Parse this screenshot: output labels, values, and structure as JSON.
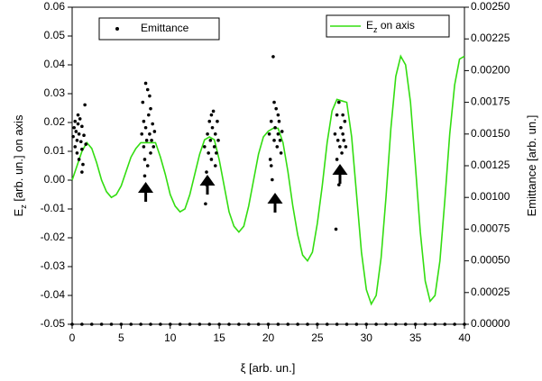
{
  "chart_data": {
    "type": "line+scatter",
    "xlabel": "ξ [arb. un.]",
    "ylabel": "E_z [arb. un.] on axis",
    "y2label": "Emittance [arb. un.]",
    "xlim": [
      0,
      40
    ],
    "xticks": [
      0,
      5,
      10,
      15,
      20,
      25,
      30,
      35,
      40
    ],
    "ylim": [
      -0.05,
      0.06
    ],
    "yticks": [
      -0.05,
      -0.04,
      -0.03,
      -0.02,
      -0.01,
      {
        "value": 0,
        "label": "0.00"
      },
      0.01,
      0.02,
      0.03,
      0.04,
      0.05,
      0.06
    ],
    "y2lim": [
      0,
      0.0025
    ],
    "y2ticks": [
      {
        "value": 0,
        "label": "0.00000"
      },
      {
        "value": 0.00025,
        "label": "0.00025"
      },
      {
        "value": 0.0005,
        "label": "0.00050"
      },
      {
        "value": 0.00075,
        "label": "0.00075"
      },
      {
        "value": 0.001,
        "label": "0.00100"
      },
      {
        "value": 0.00125,
        "label": "0.00125"
      },
      {
        "value": 0.0015,
        "label": "0.00150"
      },
      {
        "value": 0.00175,
        "label": "0.00175"
      },
      {
        "value": 0.002,
        "label": "0.00200"
      },
      {
        "value": 0.00225,
        "label": "0.00225"
      },
      {
        "value": 0.0025,
        "label": "0.00250"
      }
    ],
    "series": [
      {
        "name": "E_z on axis",
        "type": "line",
        "color": "#33dd11",
        "x": [
          0,
          0.5,
          1,
          1.5,
          2,
          2.5,
          3,
          3.5,
          4,
          4.5,
          5,
          5.5,
          6,
          6.5,
          7,
          7.5,
          8.5,
          9,
          9.5,
          10,
          10.5,
          11,
          11.5,
          12,
          12.5,
          13,
          13.5,
          14,
          14.5,
          15,
          15.5,
          16,
          16.5,
          17,
          17.5,
          18,
          18.5,
          19,
          19.5,
          20,
          20.5,
          21,
          21.5,
          22,
          22.5,
          23,
          23.5,
          24,
          24.5,
          25,
          25.5,
          26,
          26.5,
          27,
          28,
          28.5,
          29,
          29.5,
          30,
          30.5,
          31,
          31.5,
          32,
          32.5,
          33,
          33.5,
          34,
          34.5,
          35,
          35.5,
          36,
          36.5,
          37,
          37.5,
          38,
          38.5,
          39,
          39.5,
          40
        ],
        "values": [
          0,
          0.005,
          0.01,
          0.013,
          0.011,
          0.006,
          0,
          -0.004,
          -0.006,
          -0.005,
          -0.002,
          0.003,
          0.008,
          0.011,
          0.013,
          0.013,
          0.013,
          0.008,
          0.002,
          -0.005,
          -0.009,
          -0.011,
          -0.01,
          -0.005,
          0.002,
          0.009,
          0.014,
          0.015,
          0.014,
          0.007,
          -0.002,
          -0.011,
          -0.016,
          -0.018,
          -0.016,
          -0.009,
          0,
          0.009,
          0.015,
          0.017,
          0.018,
          0.018,
          0.013,
          0.003,
          -0.009,
          -0.019,
          -0.026,
          -0.028,
          -0.025,
          -0.015,
          -0.002,
          0.013,
          0.024,
          0.028,
          0.027,
          0.015,
          -0.005,
          -0.025,
          -0.038,
          -0.043,
          -0.04,
          -0.027,
          -0.006,
          0.018,
          0.036,
          0.043,
          0.04,
          0.027,
          0.005,
          -0.018,
          -0.035,
          -0.042,
          -0.04,
          -0.028,
          -0.007,
          0.016,
          0.033,
          0.042,
          0.043
        ]
      },
      {
        "name": "Emittance",
        "type": "scatter",
        "axis": "y2",
        "color": "#000000",
        "x": [
          0.1,
          0.2,
          0.3,
          0.3,
          0.4,
          0.5,
          0.5,
          0.6,
          0.7,
          0.7,
          0.8,
          0.9,
          1,
          1,
          1.1,
          1.2,
          1.3,
          1.4,
          1,
          0.6,
          7.1,
          7.2,
          7.3,
          7.3,
          7.4,
          7.5,
          7.5,
          7.6,
          7.7,
          7.7,
          7.8,
          7.9,
          8,
          8,
          8.1,
          8.2,
          8.3,
          8.4,
          7.4,
          7.9,
          13.5,
          13.6,
          13.7,
          13.8,
          13.9,
          14,
          14.1,
          14.2,
          14.3,
          14.4,
          14.5,
          14.6,
          14.7,
          14.8,
          14.9,
          13.7,
          14.2,
          14.6,
          20.1,
          20.2,
          20.3,
          20.4,
          20.5,
          20.6,
          20.7,
          20.8,
          20.9,
          21,
          21.1,
          21.2,
          21.3,
          21.4,
          20.6,
          20.3,
          21,
          26.8,
          26.9,
          27,
          27,
          27.1,
          27.2,
          27.3,
          27.4,
          27.5,
          27.6,
          27.7,
          27.8,
          27.9,
          27.2,
          27.4,
          27.6,
          0,
          1,
          2,
          3,
          4,
          5,
          6,
          7,
          8,
          9,
          10,
          11,
          12,
          13,
          14,
          15,
          16,
          17,
          18,
          19,
          20,
          21,
          22,
          23,
          24,
          25,
          26,
          27,
          28,
          29,
          30,
          31,
          32,
          33,
          34,
          35,
          36,
          37,
          38,
          39,
          40
        ],
        "values": [
          0.00148,
          0.00155,
          0.0014,
          0.0016,
          0.00152,
          0.00135,
          0.00145,
          0.00158,
          0.0015,
          0.0013,
          0.00162,
          0.00144,
          0.00138,
          0.00156,
          0.00126,
          0.00149,
          0.00173,
          0.00142,
          0.0012,
          0.00165,
          0.0015,
          0.00175,
          0.0014,
          0.0016,
          0.0013,
          0.0019,
          0.00155,
          0.00145,
          0.00185,
          0.00125,
          0.00165,
          0.0015,
          0.00135,
          0.0017,
          0.00145,
          0.00158,
          0.0014,
          0.00152,
          0.00117,
          0.0018,
          0.0014,
          0.00095,
          0.0012,
          0.0015,
          0.00135,
          0.0016,
          0.00145,
          0.0013,
          0.00155,
          0.00168,
          0.0014,
          0.0015,
          0.00135,
          0.0016,
          0.00145,
          0.0011,
          0.00165,
          0.00125,
          0.0015,
          0.0013,
          0.0016,
          0.00114,
          0.00211,
          0.00145,
          0.00155,
          0.0017,
          0.0014,
          0.0015,
          0.0016,
          0.00145,
          0.00135,
          0.00152,
          0.00175,
          0.00125,
          0.00165,
          0.0015,
          0.00075,
          0.0013,
          0.00165,
          0.00145,
          0.00175,
          0.0014,
          0.00155,
          0.00135,
          0.0015,
          0.00145,
          0.0016,
          0.0014,
          0.0011,
          0.0012,
          0.00165,
          0,
          0,
          0,
          0,
          0,
          0,
          0,
          0,
          0,
          0,
          0,
          0,
          0,
          0,
          0,
          0,
          0,
          0,
          0,
          0,
          0,
          0,
          0,
          0,
          0,
          0,
          0,
          0,
          0,
          0,
          0,
          0,
          0,
          0,
          0,
          0,
          0,
          0,
          0,
          0,
          0
        ]
      }
    ]
  }
}
